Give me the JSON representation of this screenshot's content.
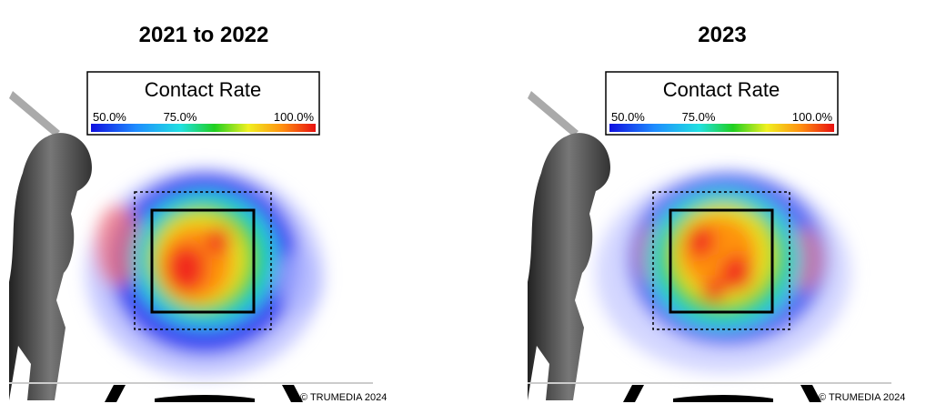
{
  "panels": [
    {
      "title": "2021 to 2022",
      "legend": {
        "title": "Contact Rate",
        "labels": [
          "50.0%",
          "75.0%",
          "100.0%"
        ]
      },
      "credit": "© TRUMEDIA 2024"
    },
    {
      "title": "2023",
      "legend": {
        "title": "Contact Rate",
        "labels": [
          "50.0%",
          "75.0%",
          "100.0%"
        ]
      },
      "credit": "© TRUMEDIA 2024"
    }
  ]
}
